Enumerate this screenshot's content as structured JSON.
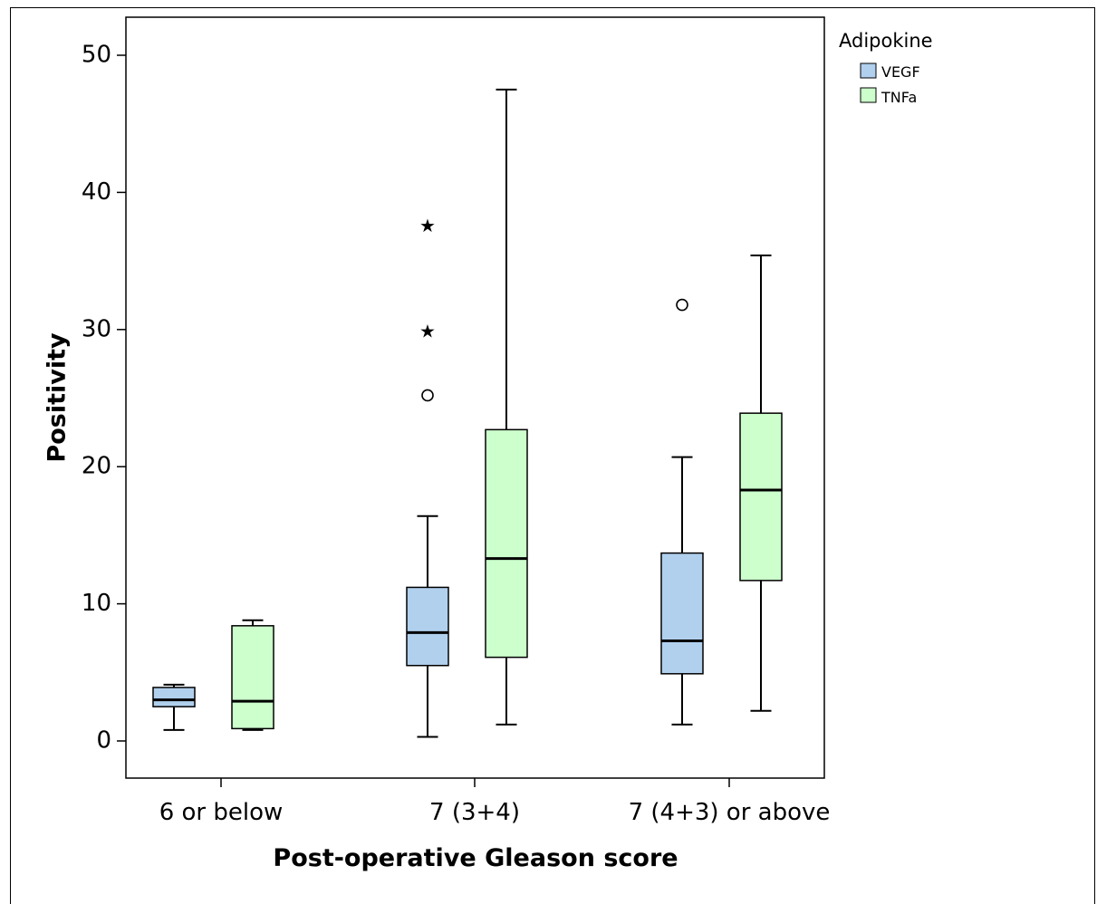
{
  "chart_data": {
    "type": "boxplot",
    "xlabel": "Post-operative Gleason score",
    "ylabel": "Positivity",
    "ylim": [
      -2.7,
      53.0
    ],
    "yticks": [
      0,
      10,
      20,
      30,
      40,
      50
    ],
    "grid": false,
    "legend": {
      "title": "Adipokine",
      "placement": "outside-top-right"
    },
    "categories": [
      "6 or below",
      "7 (3+4)",
      "7 (4+3) or above"
    ],
    "series": [
      {
        "name": "VEGF",
        "color": "#b1d0ee",
        "boxes": [
          {
            "whisker_low": 0.8,
            "q1": 2.5,
            "median": 3.0,
            "q3": 3.9,
            "whisker_high": 4.1,
            "outliers": [],
            "extremes": []
          },
          {
            "whisker_low": 0.3,
            "q1": 5.5,
            "median": 7.9,
            "q3": 11.2,
            "whisker_high": 16.4,
            "outliers": [
              25.2
            ],
            "extremes": [
              29.8,
              37.5
            ]
          },
          {
            "whisker_low": 1.2,
            "q1": 4.9,
            "median": 7.3,
            "q3": 13.7,
            "whisker_high": 20.7,
            "outliers": [
              31.8
            ],
            "extremes": []
          }
        ]
      },
      {
        "name": "TNFa",
        "color": "#ccffcc",
        "boxes": [
          {
            "whisker_low": 0.8,
            "q1": 0.9,
            "median": 2.9,
            "q3": 8.4,
            "whisker_high": 8.8,
            "outliers": [],
            "extremes": []
          },
          {
            "whisker_low": 1.2,
            "q1": 6.1,
            "median": 13.3,
            "q3": 22.7,
            "whisker_high": 47.5,
            "outliers": [],
            "extremes": []
          },
          {
            "whisker_low": 2.2,
            "q1": 11.7,
            "median": 18.3,
            "q3": 23.9,
            "whisker_high": 35.4,
            "outliers": [],
            "extremes": []
          }
        ]
      }
    ]
  }
}
